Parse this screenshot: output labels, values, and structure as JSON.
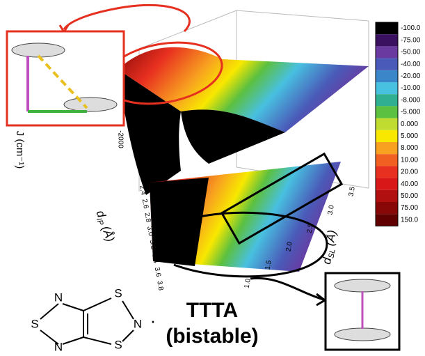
{
  "colorbar": {
    "labels": [
      "-100.0",
      "-75.00",
      "-50.00",
      "-40.00",
      "-20.00",
      "-10.00",
      "-8.000",
      "-5.000",
      "0.000",
      "5.000",
      "8.000",
      "10.00",
      "20.00",
      "40.00",
      "50.00",
      "75.00",
      "150.0"
    ],
    "colors": [
      "#000000",
      "#3a1060",
      "#6a3aa0",
      "#4a5ab8",
      "#3a86c8",
      "#48c0e0",
      "#30b090",
      "#5cc040",
      "#c0dc30",
      "#f8e800",
      "#f8a020",
      "#f06020",
      "#e83020",
      "#d81818",
      "#b01010",
      "#880808",
      "#600000"
    ]
  },
  "axes": {
    "z_label": "J (cm⁻¹)",
    "z_ticks": [
      "-2000"
    ],
    "x_label": {
      "symbol": "d",
      "subscript": "IP",
      "unit": "(Å)"
    },
    "x_ticks": [
      "2.4",
      "2.6",
      "2.8",
      "3.0",
      "3.2",
      "3.4",
      "3.6",
      "3.8"
    ],
    "y_label": {
      "symbol": "d",
      "subscript": "SL",
      "unit": "(Å)"
    },
    "y_ticks": [
      "1.0",
      "1.5",
      "2.0",
      "2.5",
      "3.0",
      "3.5"
    ]
  },
  "molecule": {
    "atoms": [
      "N",
      "S",
      "S",
      "N",
      "N",
      "S"
    ],
    "radical": "·"
  },
  "caption": {
    "name": "TTTA",
    "note": "(bistable)"
  }
}
